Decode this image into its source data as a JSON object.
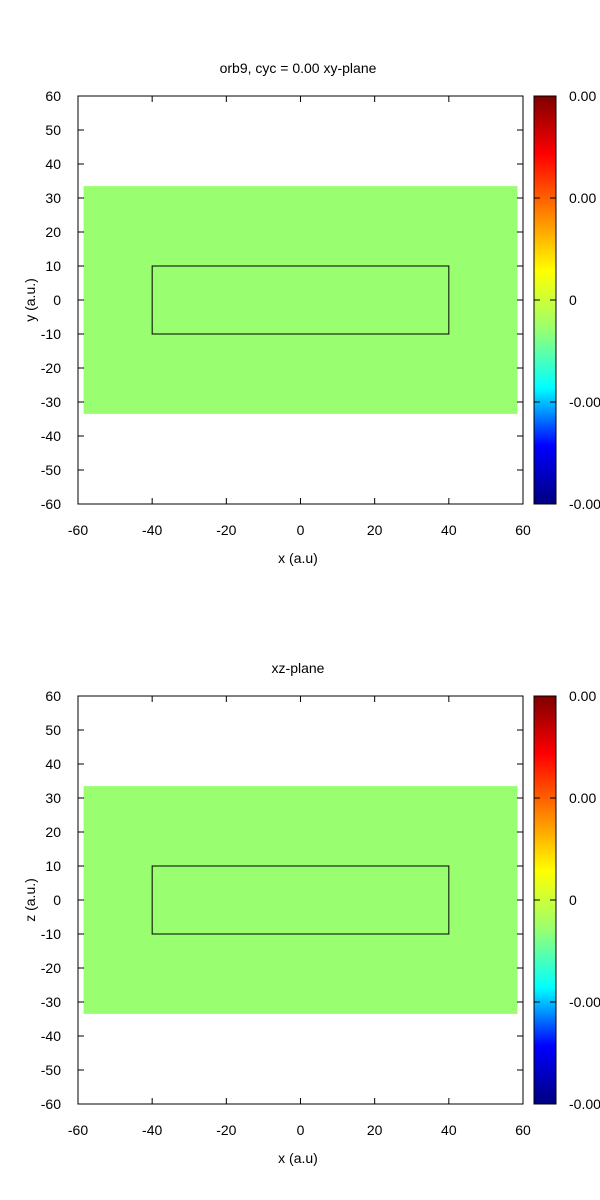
{
  "chart_data": [
    {
      "type": "heatmap",
      "title": "orb9, cyc =   0.00 xy-plane",
      "xlabel": "x (a.u)",
      "ylabel": "y (a.u.)",
      "xlim": [
        -60,
        60
      ],
      "ylim": [
        -60,
        60
      ],
      "x_ticks": [
        "-60",
        "-40",
        "-20",
        "0",
        "20",
        "40",
        "60"
      ],
      "y_ticks": [
        "60",
        "50",
        "40",
        "30",
        "20",
        "10",
        "0",
        "-10",
        "-20",
        "-30",
        "-40",
        "-50",
        "-60"
      ],
      "field_region": {
        "x": [
          -58.5,
          58.5
        ],
        "y": [
          -33.5,
          33.5
        ],
        "value": 0,
        "color": "#99ff70"
      },
      "outline_box": {
        "x": [
          -40,
          40
        ],
        "y": [
          -10,
          10
        ]
      },
      "colorbar": {
        "labels": [
          "0.00",
          "0.00",
          "0",
          "-0.00",
          "-0.00"
        ],
        "colors": [
          "#000080",
          "#0000ff",
          "#00ffff",
          "#99ff70",
          "#ffff00",
          "#ff8000",
          "#ff0000",
          "#800000"
        ]
      },
      "grid": false
    },
    {
      "type": "heatmap",
      "title": "xz-plane",
      "xlabel": "x (a.u)",
      "ylabel": "z (a.u.)",
      "xlim": [
        -60,
        60
      ],
      "ylim": [
        -60,
        60
      ],
      "x_ticks": [
        "-60",
        "-40",
        "-20",
        "0",
        "20",
        "40",
        "60"
      ],
      "y_ticks": [
        "60",
        "50",
        "40",
        "30",
        "20",
        "10",
        "0",
        "-10",
        "-20",
        "-30",
        "-40",
        "-50",
        "-60"
      ],
      "field_region": {
        "x": [
          -58.5,
          58.5
        ],
        "y": [
          -33.5,
          33.5
        ],
        "value": 0,
        "color": "#99ff70"
      },
      "outline_box": {
        "x": [
          -40,
          40
        ],
        "y": [
          -10,
          10
        ]
      },
      "colorbar": {
        "labels": [
          "0.00",
          "0.00",
          "0",
          "-0.00",
          "-0.00"
        ],
        "colors": [
          "#000080",
          "#0000ff",
          "#00ffff",
          "#99ff70",
          "#ffff00",
          "#ff8000",
          "#ff0000",
          "#800000"
        ]
      },
      "grid": false
    }
  ]
}
